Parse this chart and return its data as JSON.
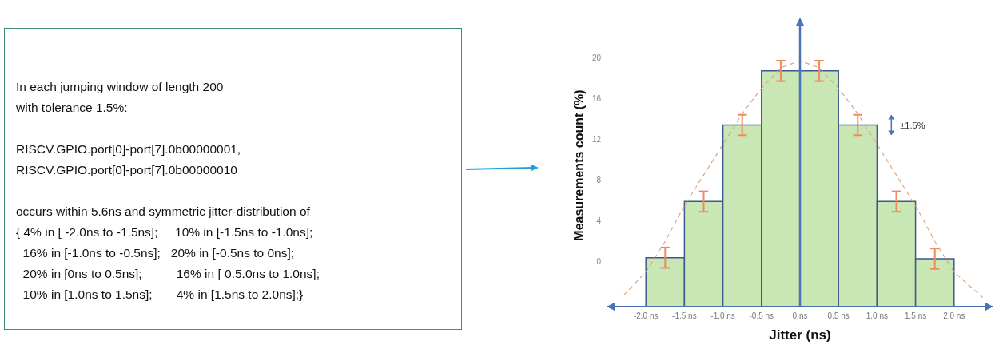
{
  "chart_data": {
    "type": "histogram",
    "xlabel": "Jitter (ns)",
    "ylabel": "Measurements count (%)",
    "bins": [
      -2.0,
      -1.5,
      -1.0,
      -0.5,
      0,
      0.5,
      1.0,
      1.5,
      2.0
    ],
    "series": [
      {
        "color": "#c9e6b5",
        "base": [
          -4.4,
          -4.4,
          -4.4,
          -4.4,
          -4.4,
          -4.4,
          -4.4,
          -4.4
        ],
        "values": [
          4.8,
          10.3,
          17.8,
          23.1,
          23.1,
          17.8,
          10.3,
          4.7
        ],
        "errors": [
          1,
          1,
          1,
          1,
          1,
          1,
          1,
          1
        ]
      },
      {
        "type": "line",
        "color": "#d9a782",
        "line_style": "dashed",
        "x": [
          -2.29,
          -2.0,
          -1.75,
          -1.5,
          -1.25,
          -1.0,
          -0.75,
          -0.5,
          -0.25,
          0,
          0.25,
          0.5,
          0.75,
          1.0,
          1.25,
          1.5,
          1.75,
          2.0,
          2.37
        ],
        "values": [
          -3.3,
          -1.0,
          2.0,
          5.5,
          8.5,
          11.5,
          14.5,
          17.0,
          19.0,
          19.7,
          19.0,
          17.0,
          14.5,
          11.5,
          8.5,
          5.5,
          2.0,
          -1.0,
          -3.5
        ]
      }
    ],
    "xlim": [
      -2.5,
      2.5
    ],
    "xticks": [
      {
        "value": -2.0,
        "label": "-2.0 ns"
      },
      {
        "value": -1.5,
        "label": "-1.5 ns"
      },
      {
        "value": -1.0,
        "label": "-1.0 ns"
      },
      {
        "value": -0.5,
        "label": "-0.5 ns"
      },
      {
        "value": 0,
        "label": "0 ns"
      },
      {
        "value": 0.5,
        "label": "0.5 ns"
      },
      {
        "value": 1.0,
        "label": "1.0 ns"
      },
      {
        "value": 1.5,
        "label": "1.5 ns"
      },
      {
        "value": 2.0,
        "label": "2.0 ns"
      }
    ],
    "ylim": [
      -4.4,
      23.3
    ],
    "yticks": [
      0,
      4,
      8,
      12,
      16,
      20
    ],
    "ref_lines": [
      {
        "axis": "x",
        "value": 0,
        "color": "#4a72b8"
      }
    ],
    "grid": false,
    "annotations": [
      "In each jumping window of length 200",
      "with tolerance 1.5%:",
      "RISCV.GPIO.port[0]-port[7].0b00000001,",
      "RISCV.GPIO.port[0]-port[7].0b00000010",
      "occurs within 5.6ns and symmetric jitter-distribution of",
      "{ 4% in [ -2.0ns to -1.5ns];     10% in [-1.5ns to -1.0ns];",
      "  16% in [-1.0ns to -0.5ns];   20% in [-0.5ns to 0ns];",
      "  20% in [0ns to 0.5ns];          16% in [ 0.5.0ns to 1.0ns];",
      "  10% in [1.0ns to 1.5ns];       4% in [1.5ns to 2.0ns];}",
      "±1.5%"
    ]
  }
}
